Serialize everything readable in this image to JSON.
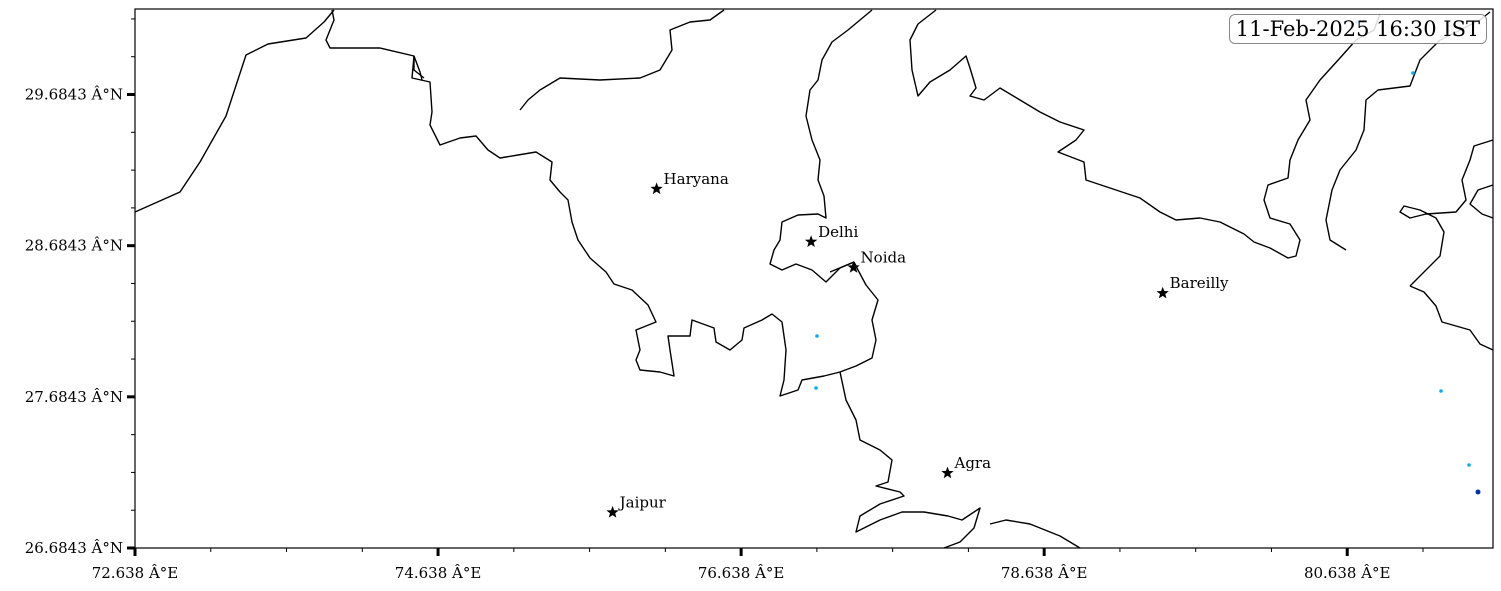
{
  "timestamp": "11-Feb-2025 16:30 IST",
  "map": {
    "lon_range": [
      72.638,
      81.6
    ],
    "lat_range": [
      26.6843,
      30.25
    ],
    "x_ticks": [
      "72.638 Â°E",
      "74.638 Â°E",
      "76.638 Â°E",
      "78.638 Â°E",
      "80.638 Â°E"
    ],
    "x_tick_values": [
      72.638,
      74.638,
      76.638,
      78.638,
      80.638
    ],
    "y_ticks": [
      "26.6843 Â°N",
      "27.6843 Â°N",
      "28.6843 Â°N",
      "29.6843 Â°N"
    ],
    "y_tick_values": [
      26.6843,
      27.6843,
      28.6843,
      29.6843
    ],
    "boundary_color": "#000000",
    "marker": "star"
  },
  "cities": [
    {
      "name": "Haryana",
      "lon": 76.08,
      "lat": 29.06
    },
    {
      "name": "Delhi",
      "lon": 77.1,
      "lat": 28.71
    },
    {
      "name": "Noida",
      "lon": 77.38,
      "lat": 28.54
    },
    {
      "name": "Bareilly",
      "lon": 79.42,
      "lat": 28.37
    },
    {
      "name": "Agra",
      "lon": 78.0,
      "lat": 27.18
    },
    {
      "name": "Jaipur",
      "lon": 75.79,
      "lat": 26.92
    }
  ],
  "highlight_colors": [
    "#00b0f0",
    "#0033aa"
  ]
}
